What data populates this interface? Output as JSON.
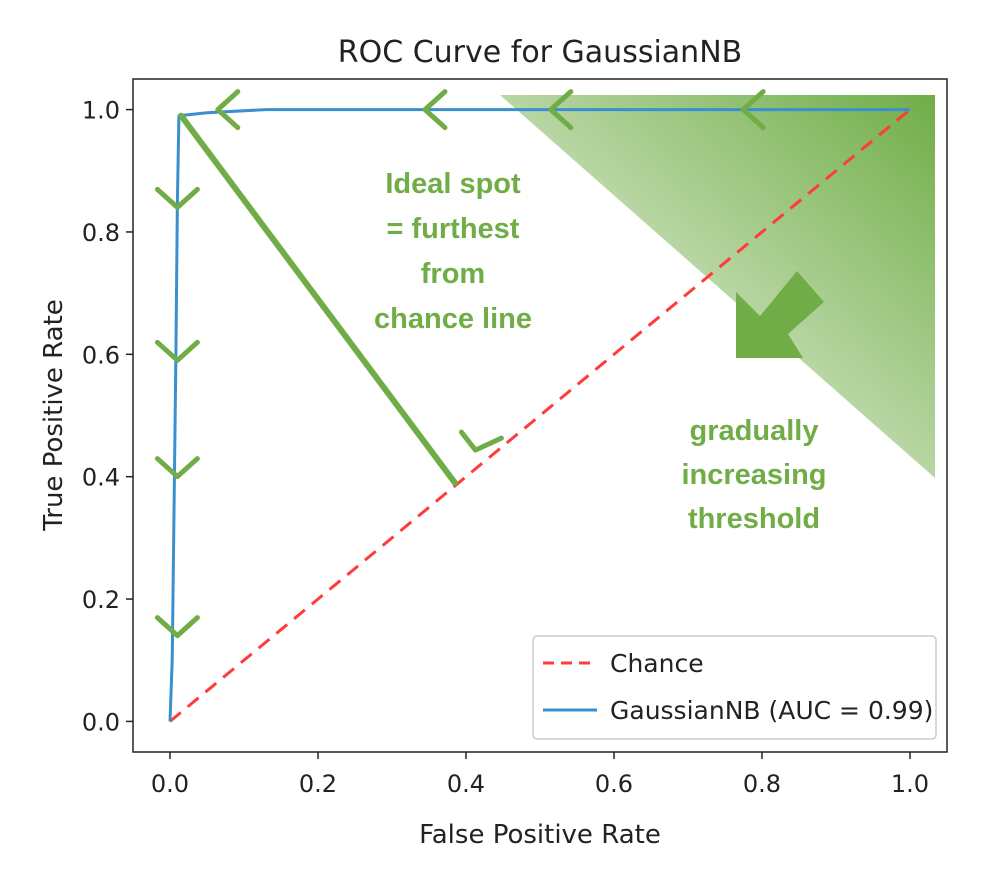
{
  "chart_data": {
    "type": "line",
    "title": "ROC Curve for GaussianNB",
    "xlabel": "False Positive Rate",
    "ylabel": "True Positive Rate",
    "xlim": [
      -0.05,
      1.05
    ],
    "ylim": [
      -0.05,
      1.05
    ],
    "xticks": [
      0.0,
      0.2,
      0.4,
      0.6,
      0.8,
      1.0
    ],
    "yticks": [
      0.0,
      0.2,
      0.4,
      0.6,
      0.8,
      1.0
    ],
    "xtick_labels": [
      "0.0",
      "0.2",
      "0.4",
      "0.6",
      "0.8",
      "1.0"
    ],
    "ytick_labels": [
      "0.0",
      "0.2",
      "0.4",
      "0.6",
      "0.8",
      "1.0"
    ],
    "grid": false,
    "legend_position": "bottom-right",
    "series": [
      {
        "name": "Chance",
        "style": "dashed",
        "color": "#ff3b3b",
        "x": [
          0.0,
          1.0
        ],
        "y": [
          0.0,
          1.0
        ]
      },
      {
        "name": "GaussianNB (AUC = 0.99)",
        "style": "solid",
        "color": "#3a8fd0",
        "x": [
          0.0,
          0.003,
          0.005,
          0.008,
          0.01,
          0.012,
          0.05,
          0.13,
          0.4,
          0.7,
          1.0
        ],
        "y": [
          0.0,
          0.1,
          0.3,
          0.6,
          0.85,
          0.99,
          0.995,
          1.0,
          1.0,
          1.0,
          1.0
        ]
      }
    ],
    "annotations": {
      "ideal_spot_lines": [
        "Ideal  spot",
        "= furthest",
        "from",
        "chance line"
      ],
      "threshold_lines": [
        "gradually",
        "increasing",
        "threshold"
      ],
      "color": "#70ad47",
      "ideal_segment": {
        "from": [
          0.015,
          0.99
        ],
        "to": [
          0.385,
          0.39
        ]
      },
      "arrowheads_top": [
        0.07,
        0.35,
        0.52,
        0.78
      ],
      "arrowheads_left": [
        0.85,
        0.6,
        0.41,
        0.15
      ],
      "arrowhead_diagonal": [
        0.41,
        0.45
      ]
    }
  }
}
